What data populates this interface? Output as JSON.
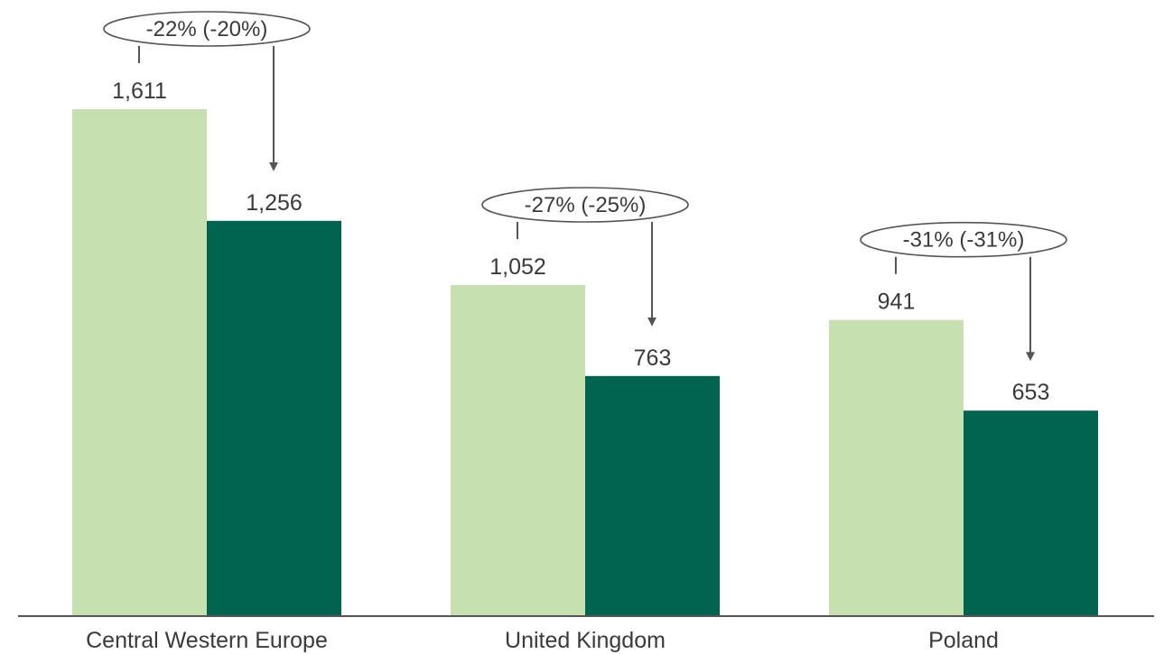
{
  "chart_data": {
    "type": "bar",
    "categories": [
      "Central Western Europe",
      "United Kingdom",
      "Poland"
    ],
    "series": [
      {
        "values": [
          1611,
          1052,
          941
        ]
      },
      {
        "values": [
          1256,
          763,
          653
        ]
      }
    ],
    "data_labels": [
      [
        "1,611",
        "1,052",
        "941"
      ],
      [
        "1,256",
        "763",
        "653"
      ]
    ],
    "annotations": [
      "-22% (-20%)",
      "-27% (-25%)",
      "-31% (-31%)"
    ],
    "ylim": [
      0,
      1800
    ],
    "grid": false,
    "legend": "none",
    "title": "",
    "xlabel": "",
    "ylabel": ""
  },
  "colors": {
    "series": [
      "#c6e0b0",
      "#006450"
    ],
    "axis": "#555555",
    "annotation": "#555555"
  }
}
